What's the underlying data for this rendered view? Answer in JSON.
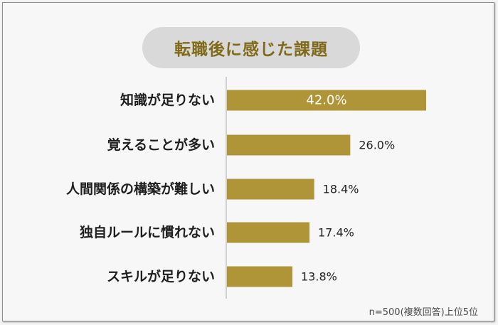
{
  "chart_data": {
    "type": "bar",
    "orientation": "horizontal",
    "title": "転職後に感じた課題",
    "categories": [
      "知識が足りない",
      "覚えることが多い",
      "人間関係の構築が難しい",
      "独自ルールに慣れない",
      "スキルが足りない"
    ],
    "values": [
      42.0,
      26.0,
      18.4,
      17.4,
      13.8
    ],
    "value_labels": [
      "42.0%",
      "26.0%",
      "18.4%",
      "17.4%",
      "13.8%"
    ],
    "unit": "%",
    "note": "n=500(複数回答)上位5位",
    "xlim": [
      0,
      60
    ],
    "grid": false,
    "legend": "none",
    "colors": {
      "bar": "#b09538",
      "inside_label": "#ffffff",
      "outside_label": "#222222",
      "title": "#806a1a",
      "pill": "#d9d9d9",
      "axis": "#c4c4c4"
    }
  }
}
